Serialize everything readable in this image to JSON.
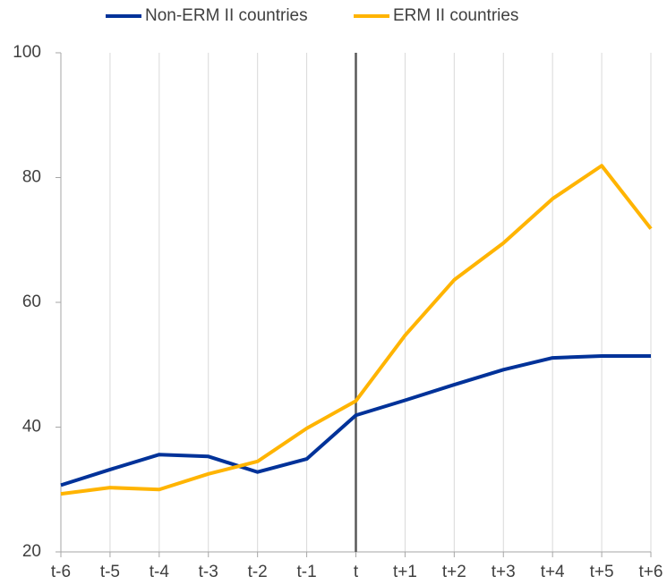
{
  "chart_data": {
    "type": "line",
    "categories": [
      "t-6",
      "t-5",
      "t-4",
      "t-3",
      "t-2",
      "t-1",
      "t",
      "t+1",
      "t+2",
      "t+3",
      "t+4",
      "t+5",
      "t+6"
    ],
    "series": [
      {
        "name": "Non-ERM II countries",
        "color": "#003299",
        "values": [
          30.7,
          33.2,
          35.6,
          35.3,
          32.8,
          34.9,
          41.9,
          44.3,
          46.8,
          49.2,
          51.1,
          51.4,
          51.4
        ]
      },
      {
        "name": "ERM II countries",
        "color": "#ffb400",
        "values": [
          29.3,
          30.3,
          30.0,
          32.5,
          34.5,
          39.8,
          44.2,
          54.7,
          63.6,
          69.5,
          76.6,
          81.9,
          71.8
        ]
      }
    ],
    "ylim": [
      20,
      100
    ],
    "yticks": [
      20,
      40,
      60,
      80,
      100
    ],
    "vertical_grid": true,
    "reference_line": "t",
    "legend": "top"
  }
}
